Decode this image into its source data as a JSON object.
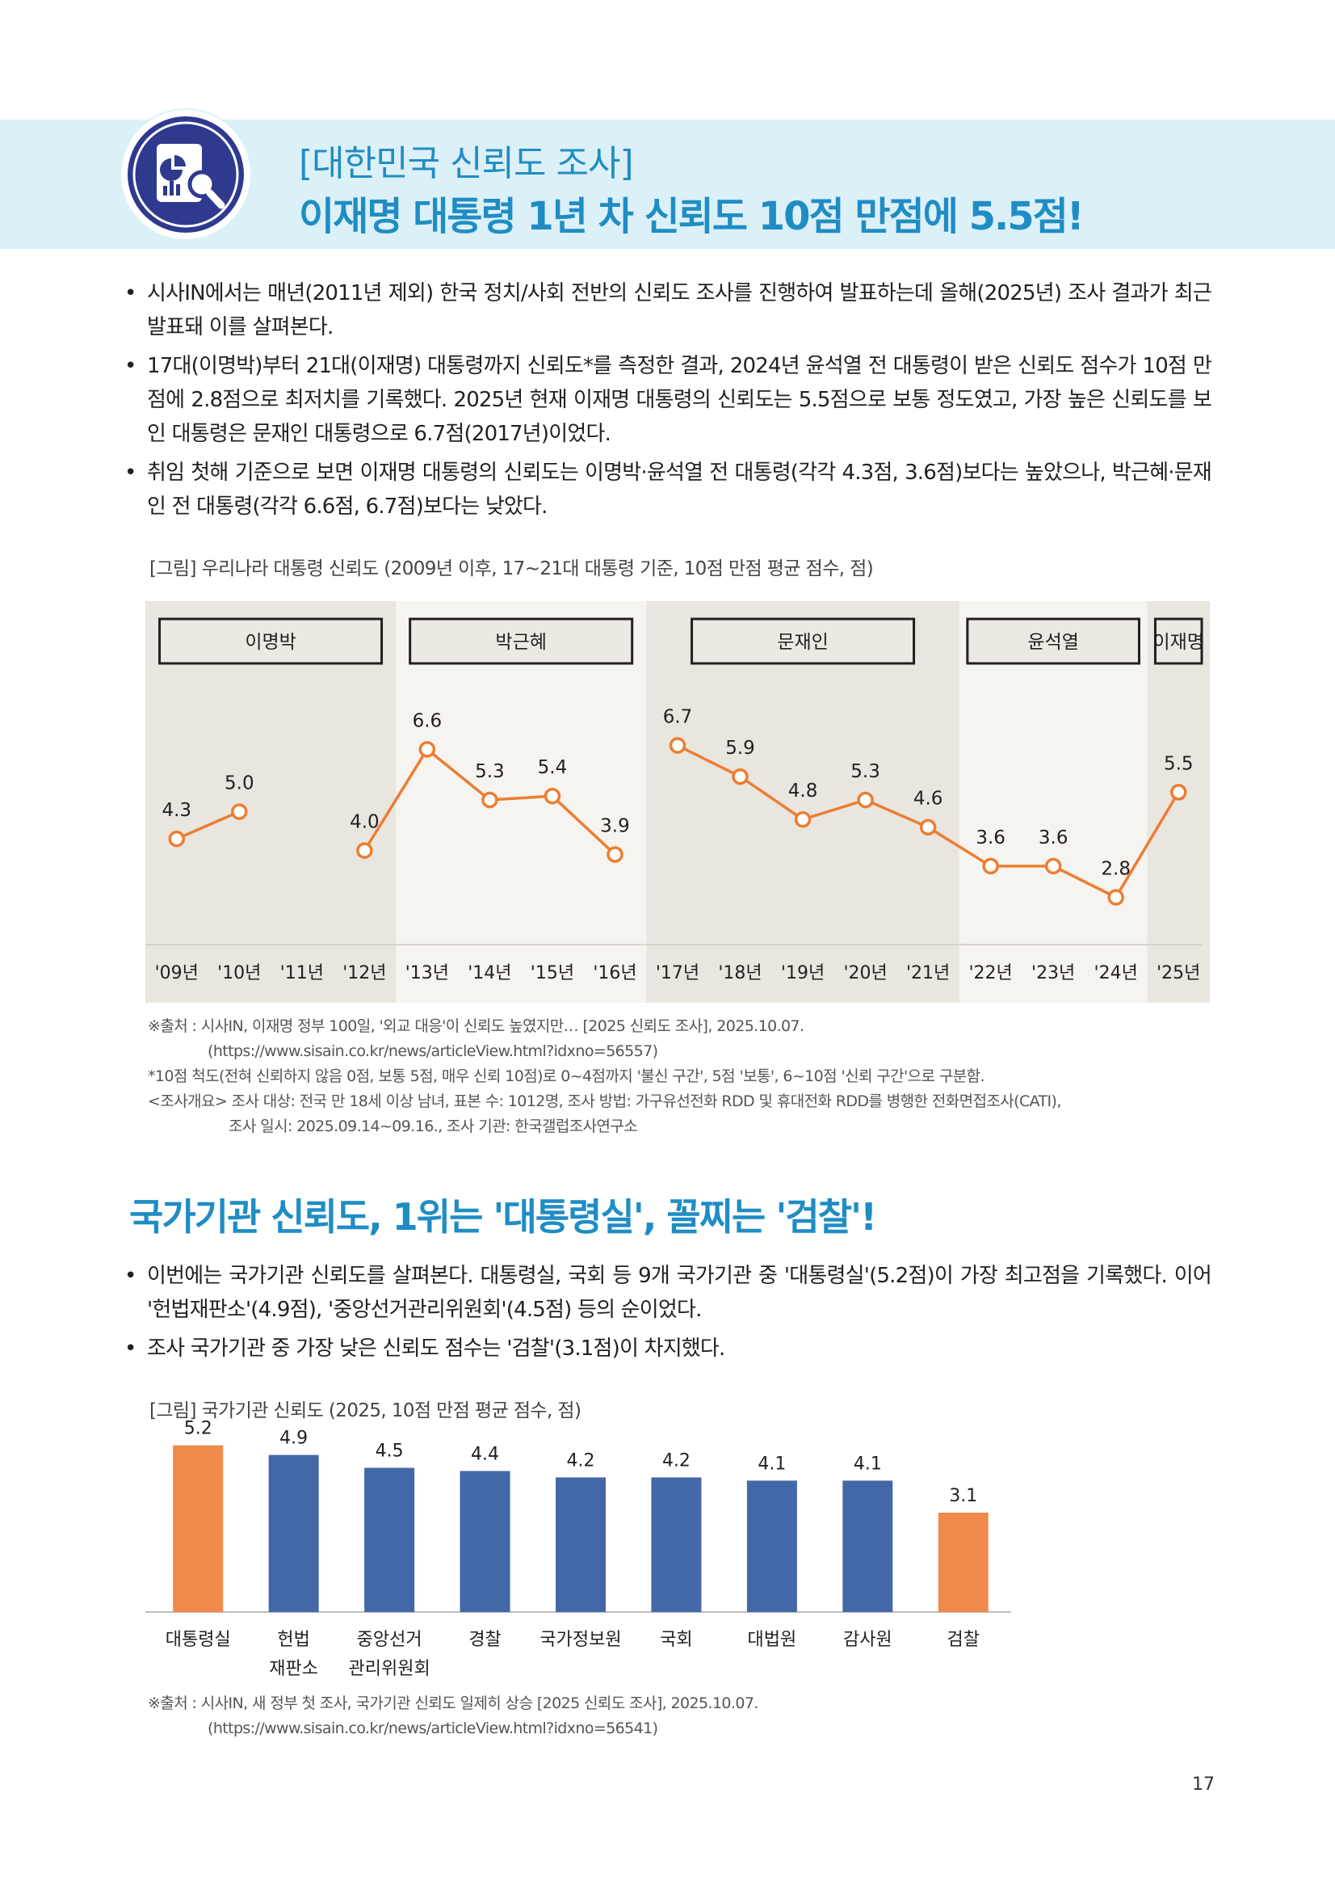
{
  "header": {
    "subtitle": "[대한민국 신뢰도 조사]",
    "title": "이재명 대통령 1년 차 신뢰도 10점 만점에 5.5점!",
    "icon": "report-magnifier-icon"
  },
  "intro_bullets": [
    "시사IN에서는 매년(2011년 제외) 한국 정치/사회 전반의 신뢰도 조사를 진행하여 발표하는데 올해(2025년) 조사 결과가 최근 발표돼 이를 살펴본다.",
    "17대(이명박)부터 21대(이재명) 대통령까지 신뢰도*를 측정한 결과, 2024년 윤석열 전 대통령이 받은 신뢰도 점수가 10점 만점에 2.8점으로 최저치를 기록했다. 2025년 현재 이재명 대통령의 신뢰도는 5.5점으로 보통 정도였고, 가장 높은 신뢰도를 보인 대통령은 문재인 대통령으로 6.7점(2017년)이었다.",
    "취임 첫해 기준으로 보면 이재명 대통령의 신뢰도는 이명박·윤석열 전 대통령(각각 4.3점, 3.6점)보다는 높았으나, 박근혜·문재인 전 대통령(각각 6.6점, 6.7점)보다는 낮았다."
  ],
  "figure1": {
    "caption": "[그림] 우리나라 대통령 신뢰도 (2009년 이후, 17~21대 대통령 기준, 10점 만점 평균 점수, 점)",
    "source_lines": [
      "※출처 : 시사IN, 이재명 정부 100일, '외교 대응'이 신뢰도 높였지만… [2025 신뢰도 조사], 2025.10.07.",
      "(https://www.sisain.co.kr/news/articleView.html?idxno=56557)",
      "*10점 척도(전혀 신뢰하지 않음 0점, 보통 5점, 매우 신뢰 10점)로 0~4점까지 '불신 구간', 5점 '보통', 6~10점 '신뢰 구간'으로 구분함.",
      "<조사개요> 조사 대상: 전국 만 18세 이상 남녀, 표본 수: 1012명, 조사 방법: 가구유선전화 RDD 및 휴대전화 RDD를 병행한 전화면접조사(CATI),",
      "조사 일시: 2025.09.14~09.16., 조사 기관: 한국갤럽조사연구소"
    ]
  },
  "section2": {
    "title": "국가기관 신뢰도, 1위는 '대통령실', 꼴찌는 '검찰'!",
    "bullets": [
      "이번에는 국가기관 신뢰도를 살펴본다. 대통령실, 국회 등 9개 국가기관 중 '대통령실'(5.2점)이 가장 최고점을 기록했다. 이어 '헌법재판소'(4.9점), '중앙선거관리위원회'(4.5점) 등의 순이었다.",
      "조사 국가기관 중 가장 낮은 신뢰도 점수는 '검찰'(3.1점)이 차지했다."
    ]
  },
  "figure2": {
    "caption": "[그림] 국가기관 신뢰도 (2025, 10점 만점 평균 점수, 점)",
    "source_lines": [
      "※출처 : 시사IN, 새 정부 첫 조사, 국가기관 신뢰도 일제히 상승 [2025 신뢰도 조사], 2025.10.07.",
      "(https://www.sisain.co.kr/news/articleView.html?idxno=56541)"
    ]
  },
  "colors": {
    "accent_blue": "#1f8dc4",
    "header_band": "#dcf0f8",
    "line_orange": "#ed7d31",
    "bar_blue": "#4368a7",
    "bar_orange": "#f08a4b",
    "band_dark": "#e9e6df",
    "band_light": "#f5f4f0"
  },
  "chart_data": [
    {
      "type": "line",
      "title": "우리나라 대통령 신뢰도",
      "categories": [
        "'09년",
        "'10년",
        "'11년",
        "'12년",
        "'13년",
        "'14년",
        "'15년",
        "'16년",
        "'17년",
        "'18년",
        "'19년",
        "'20년",
        "'21년",
        "'22년",
        "'23년",
        "'24년",
        "'25년"
      ],
      "values": [
        4.3,
        5.0,
        null,
        4.0,
        6.6,
        5.3,
        5.4,
        3.9,
        6.7,
        5.9,
        4.8,
        5.3,
        4.6,
        3.6,
        3.6,
        2.8,
        5.5
      ],
      "value_labels": [
        "4.3",
        "5.0",
        "",
        "4.0",
        "6.6",
        "5.3",
        "5.4",
        "3.9",
        "6.7",
        "5.9",
        "4.8",
        "5.3",
        "4.6",
        "3.6",
        "3.6",
        "2.8",
        "5.5"
      ],
      "line_segments": [
        [
          0,
          1
        ],
        [
          3,
          7
        ],
        [
          8,
          16
        ]
      ],
      "presidents": [
        {
          "name": "이명박",
          "start": 0,
          "end": 3
        },
        {
          "name": "박근혜",
          "start": 4,
          "end": 7
        },
        {
          "name": "문재인",
          "start": 8,
          "end": 12
        },
        {
          "name": "윤석열",
          "start": 13,
          "end": 15
        },
        {
          "name": "이재명",
          "start": 16,
          "end": 16
        }
      ],
      "ylim": [
        2.0,
        7.5
      ],
      "xlabel": "",
      "ylabel": ""
    },
    {
      "type": "bar",
      "title": "국가기관 신뢰도",
      "categories": [
        [
          "대통령실"
        ],
        [
          "헌법",
          "재판소"
        ],
        [
          "중앙선거",
          "관리위원회"
        ],
        [
          "경찰"
        ],
        [
          "국가정보원"
        ],
        [
          "국회"
        ],
        [
          "대법원"
        ],
        [
          "감사원"
        ],
        [
          "검찰"
        ]
      ],
      "values": [
        5.2,
        4.9,
        4.5,
        4.4,
        4.2,
        4.2,
        4.1,
        4.1,
        3.1
      ],
      "value_labels": [
        "5.2",
        "4.9",
        "4.5",
        "4.4",
        "4.2",
        "4.2",
        "4.1",
        "4.1",
        "3.1"
      ],
      "highlight": [
        true,
        false,
        false,
        false,
        false,
        false,
        false,
        false,
        true
      ],
      "ylim": [
        0,
        6
      ],
      "xlabel": "",
      "ylabel": ""
    }
  ],
  "page_number": "17"
}
